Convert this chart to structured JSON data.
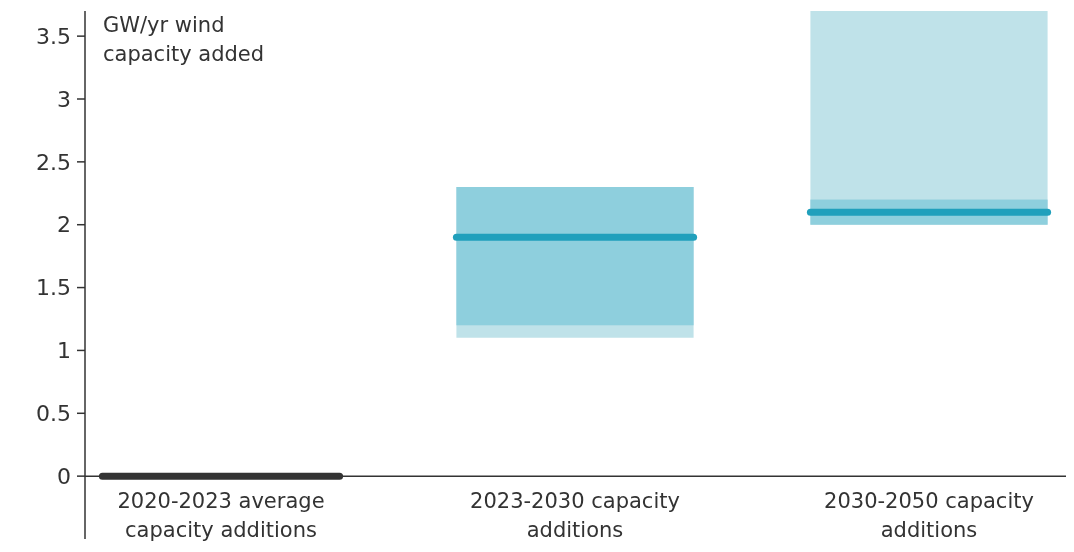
{
  "chart_data": {
    "type": "box",
    "ylabel": "GW/yr wind capacity added",
    "categories": [
      "2020-2023 average capacity additions",
      "2023-2030 capacity additions",
      "2030-2050 capacity additions"
    ],
    "series": [
      {
        "color": "#333333",
        "boxes": [
          {
            "low": 0,
            "q1": 0,
            "median": 0,
            "q3": 0,
            "high": 0
          },
          null,
          null
        ]
      },
      {
        "color": "#8ecfdd",
        "boxes": [
          null,
          {
            "low": 1.1,
            "q1": 1.2,
            "median": 1.9,
            "q3": 2.3,
            "high": 2.3
          },
          {
            "low": 2.0,
            "q1": 2.0,
            "median": 2.1,
            "q3": 2.2,
            "high": 3.7
          }
        ]
      }
    ],
    "ylim": [
      -0.5,
      3.7
    ],
    "yticks": [
      0,
      0.5,
      1,
      1.5,
      2,
      2.5,
      3,
      3.5
    ],
    "grid": false
  }
}
